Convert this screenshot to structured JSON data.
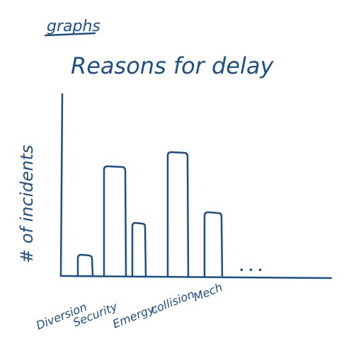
{
  "header": {
    "note": "graphs"
  },
  "chart_data": {
    "type": "bar",
    "title": "Reasons for delay",
    "ylabel": "# of incidents",
    "xlabel": "",
    "categories": [
      "Diversion",
      "Security",
      "Emergy:",
      "collision",
      "Mech"
    ],
    "values": [
      1.2,
      6.2,
      3.0,
      7.0,
      3.6
    ],
    "ylim": [
      0,
      10
    ],
    "continuation_mark": ". . .",
    "grid": false,
    "colors": {
      "ink": "#1b4f8a"
    }
  }
}
